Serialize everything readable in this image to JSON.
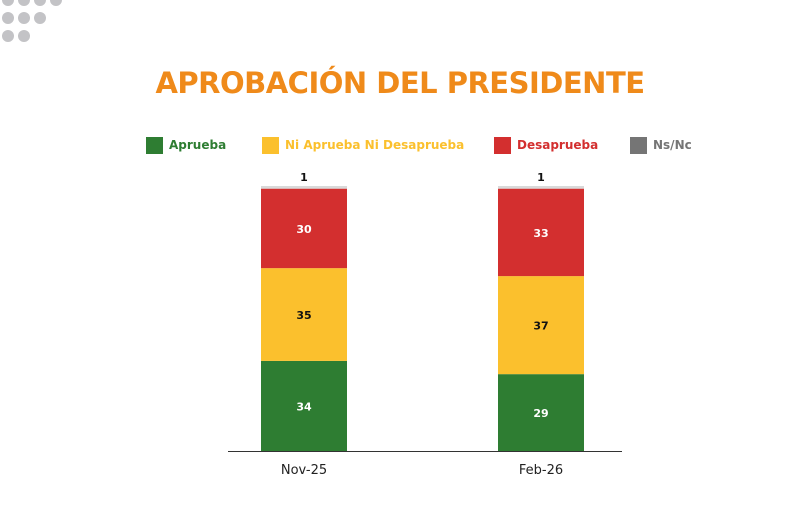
{
  "header": {
    "title": "APROBACIÓN DEL PRESIDENTE"
  },
  "colors": {
    "title": "#ef8a1a",
    "decor_dots": "#c3c3c6",
    "axis": "#333333"
  },
  "legend": [
    {
      "label": "Aprueba",
      "color": "#2e7d32"
    },
    {
      "label": "Ni Aprueba Ni Desaprueba",
      "color": "#fbc02d"
    },
    {
      "label": "Desaprueba",
      "color": "#d32f2f"
    },
    {
      "label": "Ns/Nc",
      "color": "#757575"
    }
  ],
  "chart_data": {
    "type": "bar",
    "stacked": true,
    "title": "APROBACIÓN DEL PRESIDENTE",
    "categories": [
      "Nov-25",
      "Feb-26"
    ],
    "series": [
      {
        "name": "Aprueba",
        "values": [
          34,
          29
        ],
        "color": "#2e7d32",
        "label_color": "#ffffff"
      },
      {
        "name": "Ni Aprueba Ni Desaprueba",
        "values": [
          35,
          37
        ],
        "color": "#fbc02d",
        "label_color": "#111111"
      },
      {
        "name": "Desaprueba",
        "values": [
          30,
          33
        ],
        "color": "#d32f2f",
        "label_color": "#ffffff"
      },
      {
        "name": "Ns/Nc",
        "values": [
          1,
          1
        ],
        "color": "#d9d9d9",
        "label_color": "#111111"
      }
    ],
    "ylim": [
      0,
      100
    ],
    "grid": false,
    "legend_position": "top",
    "xlabel": "",
    "ylabel": ""
  }
}
